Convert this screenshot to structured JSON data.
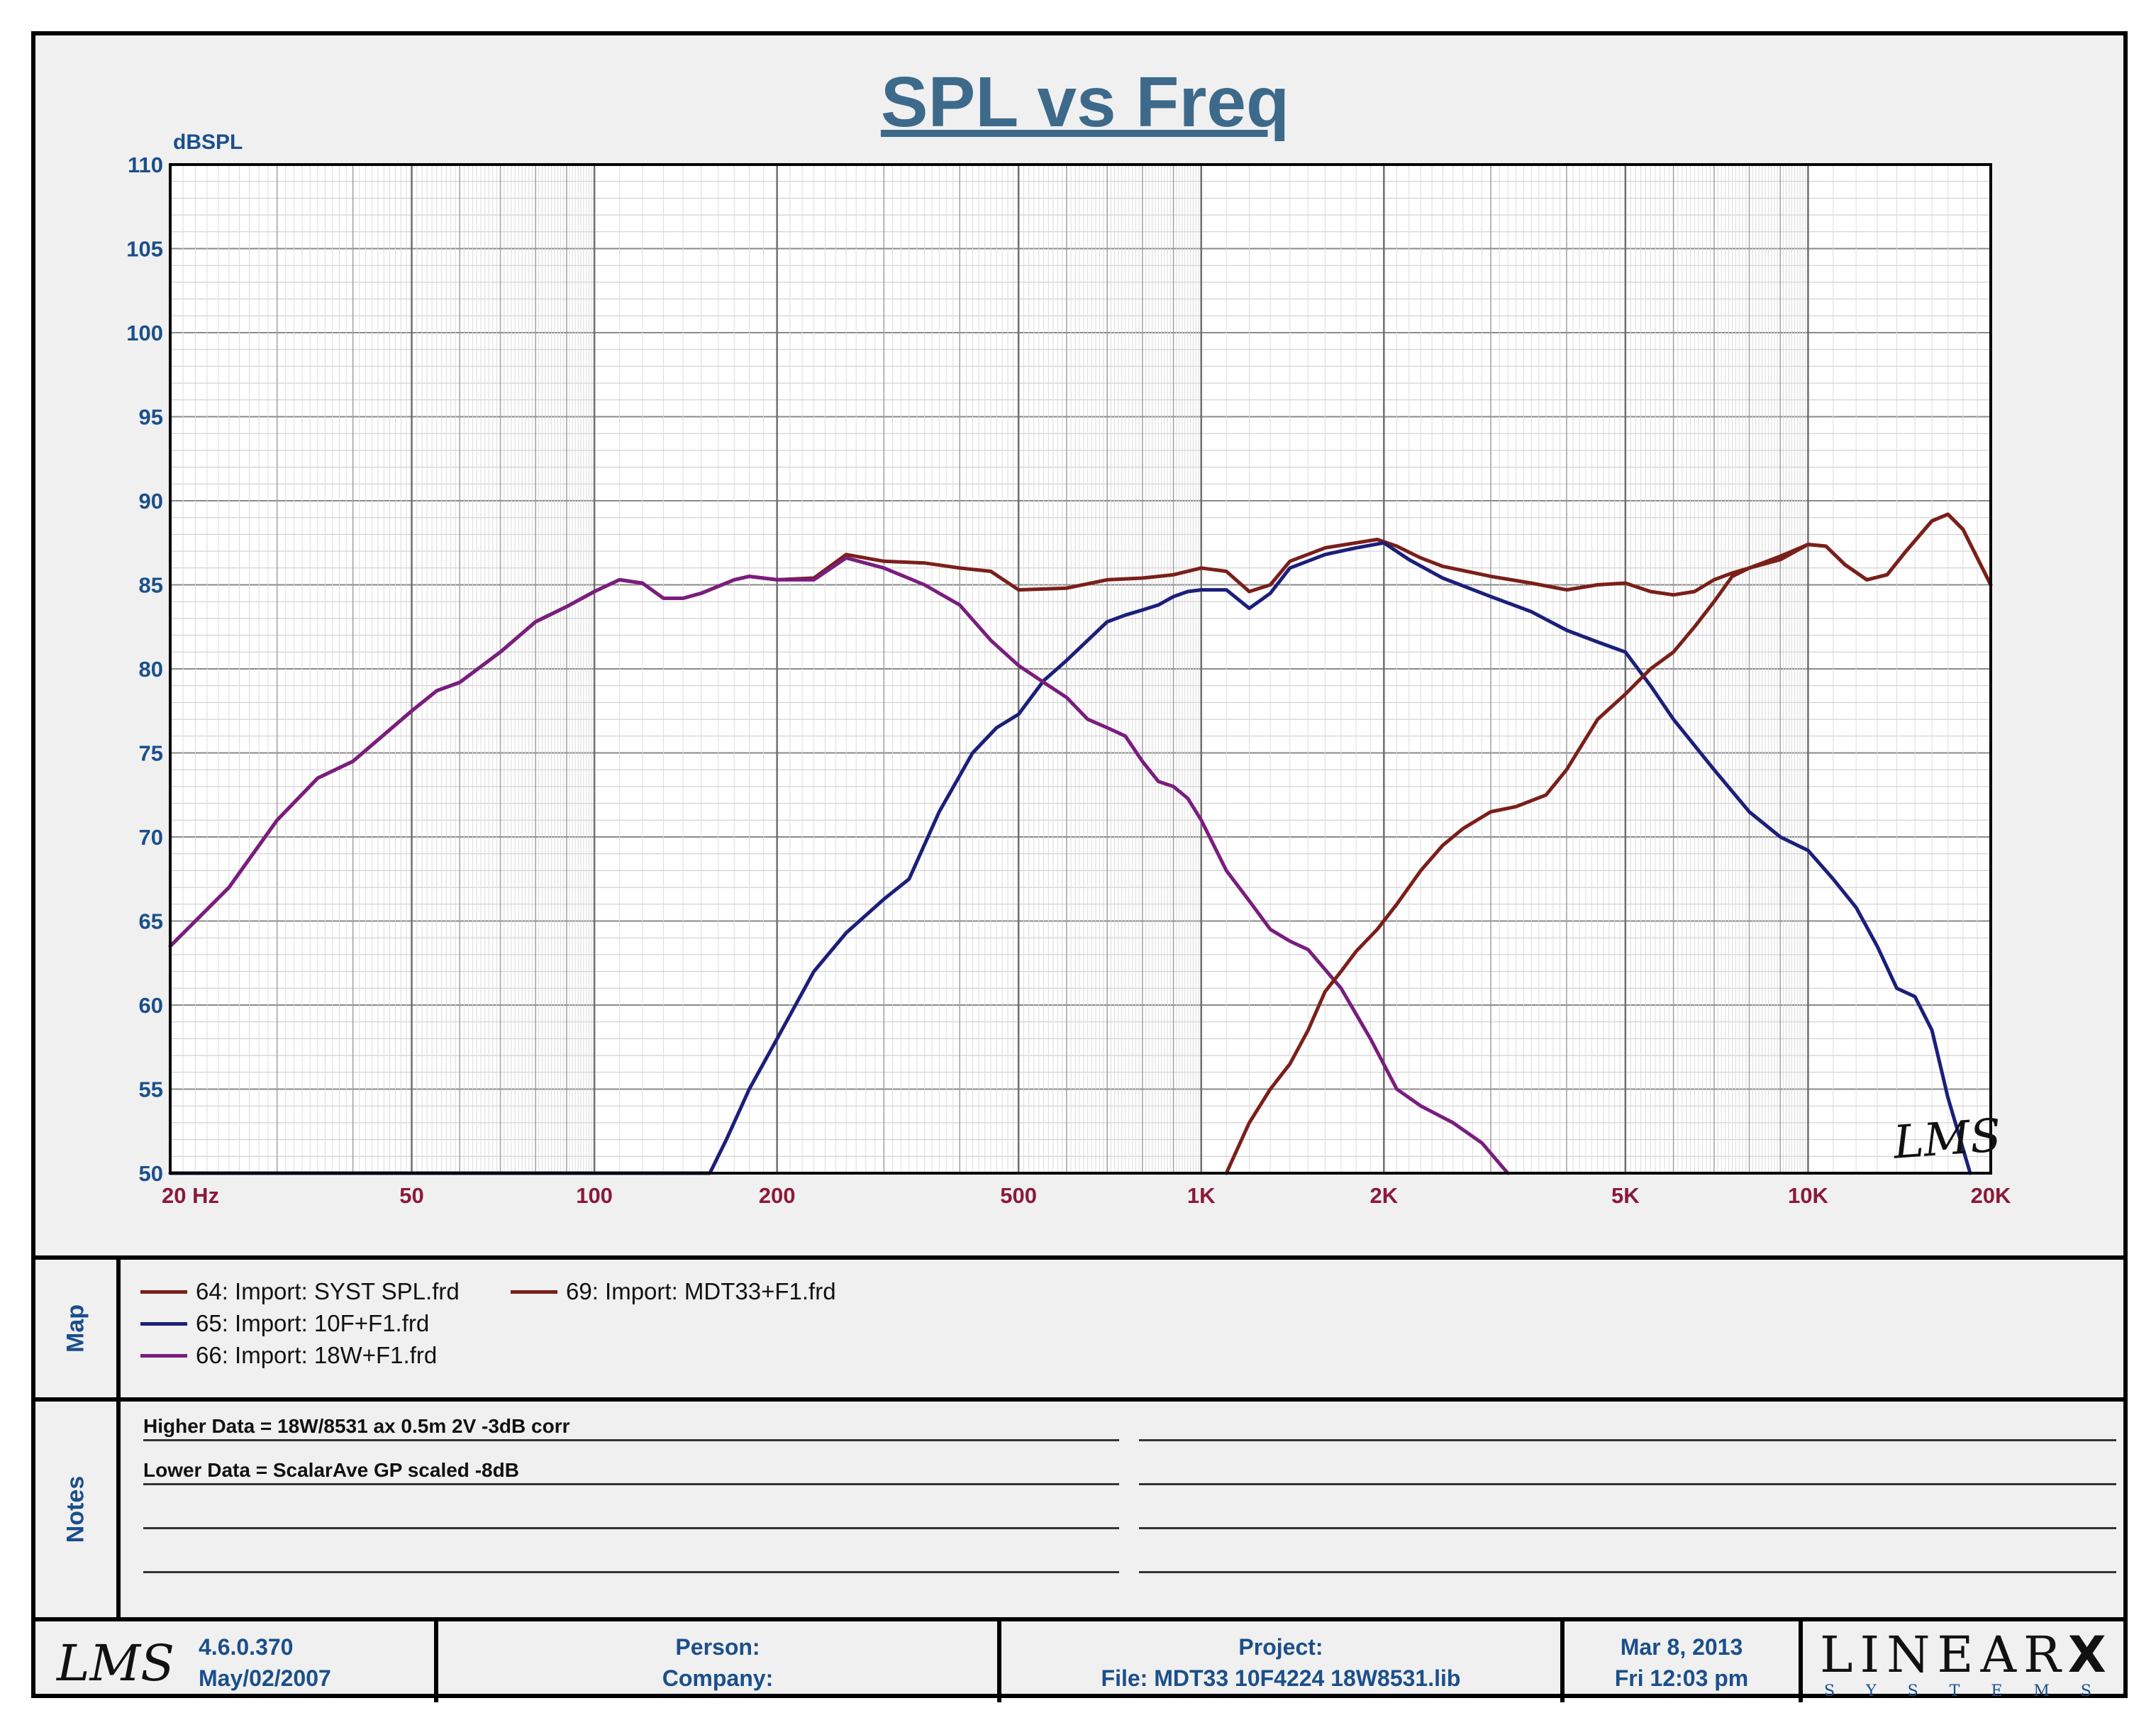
{
  "chart_data": {
    "type": "line",
    "title": "SPL vs Freq",
    "ylabel": "dBSPL",
    "xscale": "log",
    "xlim": [
      20,
      20000
    ],
    "ylim": [
      50,
      110
    ],
    "grid": true,
    "y_ticks": [
      "110",
      "105",
      "100",
      "95",
      "90",
      "85",
      "80",
      "75",
      "70",
      "65",
      "60",
      "55",
      "50"
    ],
    "x_ticks": [
      {
        "v": 20,
        "label": "20  Hz"
      },
      {
        "v": 50,
        "label": "50"
      },
      {
        "v": 100,
        "label": "100"
      },
      {
        "v": 200,
        "label": "200"
      },
      {
        "v": 500,
        "label": "500"
      },
      {
        "v": 1000,
        "label": "1K"
      },
      {
        "v": 2000,
        "label": "2K"
      },
      {
        "v": 5000,
        "label": "5K"
      },
      {
        "v": 10000,
        "label": "10K"
      },
      {
        "v": 20000,
        "label": "20K"
      }
    ],
    "series": [
      {
        "name": "64: Import: SYST SPL.frd",
        "color": "#7a1f1a",
        "points": [
          [
            20,
            63.5
          ],
          [
            25,
            67
          ],
          [
            30,
            71
          ],
          [
            35,
            73.5
          ],
          [
            40,
            74.5
          ],
          [
            50,
            77.5
          ],
          [
            55,
            78.7
          ],
          [
            60,
            79.2
          ],
          [
            70,
            81
          ],
          [
            80,
            82.8
          ],
          [
            90,
            83.7
          ],
          [
            100,
            84.6
          ],
          [
            110,
            85.3
          ],
          [
            120,
            85.1
          ],
          [
            130,
            84.2
          ],
          [
            140,
            84.2
          ],
          [
            150,
            84.5
          ],
          [
            170,
            85.3
          ],
          [
            180,
            85.5
          ],
          [
            200,
            85.3
          ],
          [
            230,
            85.4
          ],
          [
            260,
            86.8
          ],
          [
            300,
            86.4
          ],
          [
            350,
            86.3
          ],
          [
            400,
            86
          ],
          [
            450,
            85.8
          ],
          [
            500,
            84.7
          ],
          [
            600,
            84.8
          ],
          [
            700,
            85.3
          ],
          [
            800,
            85.4
          ],
          [
            900,
            85.6
          ],
          [
            1000,
            86
          ],
          [
            1100,
            85.8
          ],
          [
            1200,
            84.6
          ],
          [
            1300,
            85
          ],
          [
            1400,
            86.4
          ],
          [
            1600,
            87.2
          ],
          [
            1800,
            87.5
          ],
          [
            1950,
            87.7
          ],
          [
            2100,
            87.3
          ],
          [
            2300,
            86.6
          ],
          [
            2500,
            86.1
          ],
          [
            3000,
            85.5
          ],
          [
            3500,
            85.1
          ],
          [
            4000,
            84.7
          ],
          [
            4500,
            85
          ],
          [
            5000,
            85.1
          ],
          [
            5500,
            84.6
          ],
          [
            6000,
            84.4
          ],
          [
            6500,
            84.6
          ],
          [
            7000,
            85.3
          ],
          [
            7500,
            85.7
          ],
          [
            8000,
            86
          ],
          [
            9000,
            86.5
          ],
          [
            10000,
            87.4
          ],
          [
            10700,
            87.3
          ],
          [
            11500,
            86.2
          ],
          [
            12500,
            85.3
          ],
          [
            13500,
            85.6
          ],
          [
            14500,
            87
          ],
          [
            16000,
            88.8
          ],
          [
            17000,
            89.2
          ],
          [
            18000,
            88.3
          ],
          [
            20000,
            85
          ]
        ]
      },
      {
        "name": "65: Import: 10F+F1.frd",
        "color": "#1b1f7a",
        "points": [
          [
            20,
            50
          ],
          [
            155,
            50
          ],
          [
            165,
            52
          ],
          [
            180,
            55
          ],
          [
            200,
            58
          ],
          [
            230,
            62
          ],
          [
            260,
            64.3
          ],
          [
            300,
            66.3
          ],
          [
            330,
            67.5
          ],
          [
            370,
            71.5
          ],
          [
            420,
            75
          ],
          [
            460,
            76.5
          ],
          [
            500,
            77.3
          ],
          [
            550,
            79.3
          ],
          [
            600,
            80.5
          ],
          [
            650,
            81.7
          ],
          [
            700,
            82.8
          ],
          [
            750,
            83.2
          ],
          [
            800,
            83.5
          ],
          [
            850,
            83.8
          ],
          [
            900,
            84.3
          ],
          [
            950,
            84.6
          ],
          [
            1000,
            84.7
          ],
          [
            1100,
            84.7
          ],
          [
            1200,
            83.6
          ],
          [
            1300,
            84.5
          ],
          [
            1400,
            86
          ],
          [
            1600,
            86.8
          ],
          [
            1800,
            87.2
          ],
          [
            2000,
            87.5
          ],
          [
            2200,
            86.5
          ],
          [
            2500,
            85.4
          ],
          [
            3000,
            84.3
          ],
          [
            3500,
            83.4
          ],
          [
            4000,
            82.3
          ],
          [
            4500,
            81.6
          ],
          [
            5000,
            81
          ],
          [
            5500,
            79
          ],
          [
            6000,
            77
          ],
          [
            7000,
            74
          ],
          [
            8000,
            71.5
          ],
          [
            9000,
            70
          ],
          [
            10000,
            69.2
          ],
          [
            11000,
            67.5
          ],
          [
            12000,
            65.8
          ],
          [
            13000,
            63.5
          ],
          [
            14000,
            61
          ],
          [
            15000,
            60.5
          ],
          [
            16000,
            58.5
          ],
          [
            17000,
            54.5
          ],
          [
            18500,
            50
          ]
        ]
      },
      {
        "name": "66: Import: 18W+F1.frd",
        "color": "#7a1d7e",
        "points": [
          [
            20,
            63.5
          ],
          [
            25,
            67
          ],
          [
            30,
            71
          ],
          [
            35,
            73.5
          ],
          [
            40,
            74.5
          ],
          [
            50,
            77.5
          ],
          [
            55,
            78.7
          ],
          [
            60,
            79.2
          ],
          [
            70,
            81
          ],
          [
            80,
            82.8
          ],
          [
            90,
            83.7
          ],
          [
            100,
            84.6
          ],
          [
            110,
            85.3
          ],
          [
            120,
            85.1
          ],
          [
            130,
            84.2
          ],
          [
            140,
            84.2
          ],
          [
            150,
            84.5
          ],
          [
            170,
            85.3
          ],
          [
            180,
            85.5
          ],
          [
            200,
            85.3
          ],
          [
            230,
            85.3
          ],
          [
            260,
            86.6
          ],
          [
            300,
            86
          ],
          [
            350,
            85
          ],
          [
            400,
            83.8
          ],
          [
            450,
            81.7
          ],
          [
            500,
            80.2
          ],
          [
            550,
            79.2
          ],
          [
            600,
            78.3
          ],
          [
            650,
            77
          ],
          [
            700,
            76.5
          ],
          [
            750,
            76
          ],
          [
            800,
            74.5
          ],
          [
            850,
            73.3
          ],
          [
            900,
            73
          ],
          [
            950,
            72.3
          ],
          [
            1000,
            71
          ],
          [
            1100,
            68
          ],
          [
            1200,
            66.2
          ],
          [
            1300,
            64.5
          ],
          [
            1400,
            63.8
          ],
          [
            1500,
            63.3
          ],
          [
            1700,
            61
          ],
          [
            1900,
            58
          ],
          [
            2100,
            55
          ],
          [
            2300,
            54
          ],
          [
            2600,
            53
          ],
          [
            2900,
            51.8
          ],
          [
            3200,
            50
          ]
        ]
      },
      {
        "name": "69: Import: MDT33+F1.frd",
        "color": "#7a1f1a",
        "points": [
          [
            1100,
            50
          ],
          [
            1200,
            53
          ],
          [
            1300,
            55
          ],
          [
            1400,
            56.5
          ],
          [
            1500,
            58.5
          ],
          [
            1600,
            60.8
          ],
          [
            1700,
            62
          ],
          [
            1800,
            63.2
          ],
          [
            1950,
            64.5
          ],
          [
            2100,
            66
          ],
          [
            2300,
            68
          ],
          [
            2500,
            69.5
          ],
          [
            2700,
            70.5
          ],
          [
            3000,
            71.5
          ],
          [
            3300,
            71.8
          ],
          [
            3700,
            72.5
          ],
          [
            4000,
            74
          ],
          [
            4500,
            77
          ],
          [
            5000,
            78.5
          ],
          [
            5500,
            80
          ],
          [
            6000,
            81
          ],
          [
            6500,
            82.5
          ],
          [
            7000,
            84
          ],
          [
            7500,
            85.5
          ],
          [
            8000,
            86
          ],
          [
            9000,
            86.7
          ],
          [
            10000,
            87.4
          ],
          [
            10700,
            87.3
          ],
          [
            11500,
            86.2
          ],
          [
            12500,
            85.3
          ],
          [
            13500,
            85.6
          ],
          [
            14500,
            87
          ],
          [
            16000,
            88.8
          ],
          [
            17000,
            89.2
          ],
          [
            18000,
            88.3
          ],
          [
            20000,
            85
          ]
        ]
      }
    ]
  },
  "legend": {
    "side_label": "Map",
    "items": [
      {
        "label": "64: Import: SYST SPL.frd",
        "color": "#7a1f1a"
      },
      {
        "label": "65: Import: 10F+F1.frd",
        "color": "#1b1f7a"
      },
      {
        "label": "66: Import: 18W+F1.frd",
        "color": "#7a1d7e"
      },
      {
        "label": "69: Import: MDT33+F1.frd",
        "color": "#7a1f1a"
      }
    ]
  },
  "notes": {
    "side_label": "Notes",
    "line1": "Higher Data = 18W/8531 ax 0.5m 2V -3dB corr",
    "line2": "Lower  Data = ScalarAve GP scaled -8dB"
  },
  "watermark": "LMS",
  "footer": {
    "logo": "LMS",
    "version": "4.6.0.370",
    "version_date": "May/02/2007",
    "person_label": "Person:",
    "company_label": "Company:",
    "project_label": "Project:",
    "file_label": "File: MDT33 10F4224 18W8531.lib",
    "date": "Mar  8, 2013",
    "time": "Fri 12:03 pm",
    "brand": "LINEAR",
    "brand_x": "X",
    "brand_sub": "SYSTEMS"
  }
}
